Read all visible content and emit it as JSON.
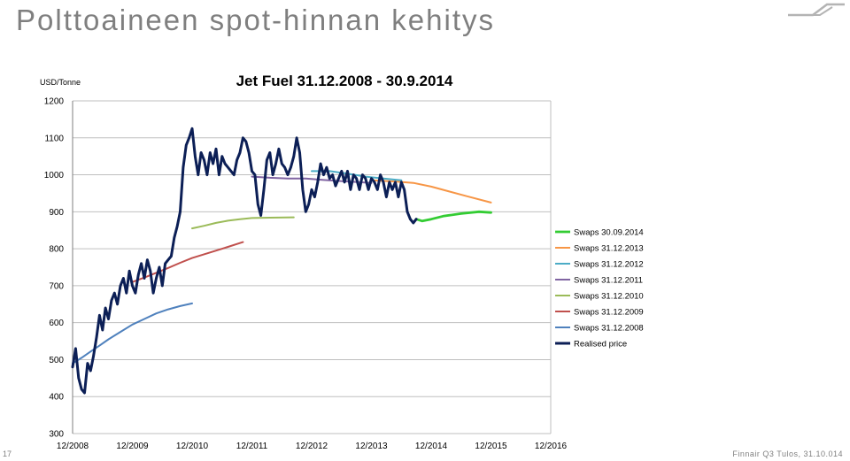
{
  "slide": {
    "title": "Polttoaineen spot-hinnan kehitys",
    "number": "17",
    "footer": "Finnair Q3 Tulos, 31.10.014"
  },
  "chart_data": {
    "type": "line",
    "title": "Jet Fuel 31.12.2008 - 30.9.2014",
    "unit_label": "USD/Tonne",
    "ylim": [
      300,
      1200
    ],
    "xlim": [
      0,
      8
    ],
    "y_ticks": [
      300,
      400,
      500,
      600,
      700,
      800,
      900,
      1000,
      1100,
      1200
    ],
    "x_ticks": [
      "12/2008",
      "12/2009",
      "12/2010",
      "12/2011",
      "12/2012",
      "12/2013",
      "12/2014",
      "12/2015",
      "12/2016"
    ],
    "x_unit": "years since 12/2008",
    "grid": "horizontal",
    "legend_position": "right",
    "series": [
      {
        "name": "Swaps 30.09.2014",
        "color": "#33cc33",
        "width": 2.8,
        "x": [
          5.75,
          5.85,
          6.0,
          6.2,
          6.5,
          6.8,
          7.0
        ],
        "y": [
          880,
          875,
          880,
          888,
          895,
          900,
          898
        ]
      },
      {
        "name": "Swaps 31.12.2013",
        "color": "#f79646",
        "width": 2,
        "x": [
          5.0,
          5.4,
          5.7,
          6.0,
          6.3,
          6.6,
          7.0
        ],
        "y": [
          985,
          982,
          978,
          968,
          955,
          942,
          925
        ]
      },
      {
        "name": "Swaps 31.12.2012",
        "color": "#4bacc6",
        "width": 2,
        "x": [
          4.0,
          4.3,
          4.6,
          4.9,
          5.2,
          5.5
        ],
        "y": [
          1010,
          1010,
          1003,
          995,
          990,
          985
        ]
      },
      {
        "name": "Swaps 31.12.2011",
        "color": "#8064a2",
        "width": 2,
        "x": [
          3.0,
          3.3,
          3.6,
          3.9,
          4.2,
          4.5,
          4.8,
          5.0
        ],
        "y": [
          995,
          992,
          990,
          990,
          986,
          983,
          980,
          978
        ]
      },
      {
        "name": "Swaps 31.12.2010",
        "color": "#9bbb59",
        "width": 2,
        "x": [
          2.0,
          2.2,
          2.4,
          2.6,
          2.8,
          3.0,
          3.3,
          3.7
        ],
        "y": [
          855,
          862,
          870,
          876,
          880,
          883,
          884,
          885
        ]
      },
      {
        "name": "Swaps 31.12.2009",
        "color": "#c0504d",
        "width": 2,
        "x": [
          1.0,
          1.2,
          1.4,
          1.6,
          1.8,
          2.0,
          2.3,
          2.6,
          2.85
        ],
        "y": [
          710,
          722,
          735,
          748,
          762,
          775,
          790,
          805,
          818
        ]
      },
      {
        "name": "Swaps 31.12.2008",
        "color": "#4f81bd",
        "width": 2,
        "x": [
          0.0,
          0.15,
          0.3,
          0.45,
          0.6,
          0.8,
          1.0,
          1.2,
          1.4,
          1.6,
          1.8,
          2.0
        ],
        "y": [
          490,
          505,
          522,
          538,
          555,
          575,
          595,
          610,
          625,
          636,
          645,
          652
        ]
      },
      {
        "name": "Realised price",
        "color": "#0c1f56",
        "width": 3,
        "x": [
          0.0,
          0.05,
          0.1,
          0.15,
          0.2,
          0.25,
          0.3,
          0.35,
          0.4,
          0.45,
          0.5,
          0.55,
          0.6,
          0.65,
          0.7,
          0.75,
          0.8,
          0.85,
          0.9,
          0.95,
          1.0,
          1.05,
          1.1,
          1.15,
          1.2,
          1.25,
          1.3,
          1.35,
          1.4,
          1.45,
          1.5,
          1.55,
          1.6,
          1.65,
          1.7,
          1.75,
          1.8,
          1.85,
          1.9,
          1.95,
          2.0,
          2.05,
          2.1,
          2.15,
          2.2,
          2.25,
          2.3,
          2.35,
          2.4,
          2.45,
          2.5,
          2.55,
          2.6,
          2.65,
          2.7,
          2.75,
          2.8,
          2.85,
          2.9,
          2.95,
          3.0,
          3.05,
          3.1,
          3.15,
          3.2,
          3.25,
          3.3,
          3.35,
          3.4,
          3.45,
          3.5,
          3.55,
          3.6,
          3.65,
          3.7,
          3.75,
          3.8,
          3.85,
          3.9,
          3.95,
          4.0,
          4.05,
          4.1,
          4.15,
          4.2,
          4.25,
          4.3,
          4.35,
          4.4,
          4.45,
          4.5,
          4.55,
          4.6,
          4.65,
          4.7,
          4.75,
          4.8,
          4.85,
          4.9,
          4.95,
          5.0,
          5.05,
          5.1,
          5.15,
          5.2,
          5.25,
          5.3,
          5.35,
          5.4,
          5.45,
          5.5,
          5.55,
          5.6,
          5.65,
          5.7,
          5.75
        ],
        "y": [
          480,
          530,
          450,
          420,
          410,
          490,
          470,
          510,
          560,
          620,
          580,
          640,
          610,
          660,
          680,
          650,
          700,
          720,
          680,
          740,
          700,
          680,
          730,
          760,
          720,
          770,
          740,
          680,
          720,
          750,
          700,
          760,
          770,
          780,
          830,
          860,
          900,
          1020,
          1080,
          1100,
          1125,
          1050,
          1000,
          1060,
          1040,
          1000,
          1060,
          1030,
          1070,
          1000,
          1050,
          1030,
          1020,
          1010,
          1000,
          1040,
          1060,
          1100,
          1090,
          1060,
          1010,
          1000,
          920,
          890,
          960,
          1040,
          1060,
          1000,
          1030,
          1070,
          1030,
          1020,
          1000,
          1020,
          1050,
          1100,
          1060,
          960,
          900,
          920,
          960,
          940,
          980,
          1030,
          1000,
          1020,
          990,
          1000,
          970,
          990,
          1010,
          980,
          1010,
          960,
          1000,
          990,
          960,
          1000,
          990,
          960,
          990,
          980,
          960,
          1000,
          980,
          940,
          980,
          960,
          980,
          940,
          980,
          960,
          900,
          880,
          870,
          880
        ]
      }
    ]
  }
}
